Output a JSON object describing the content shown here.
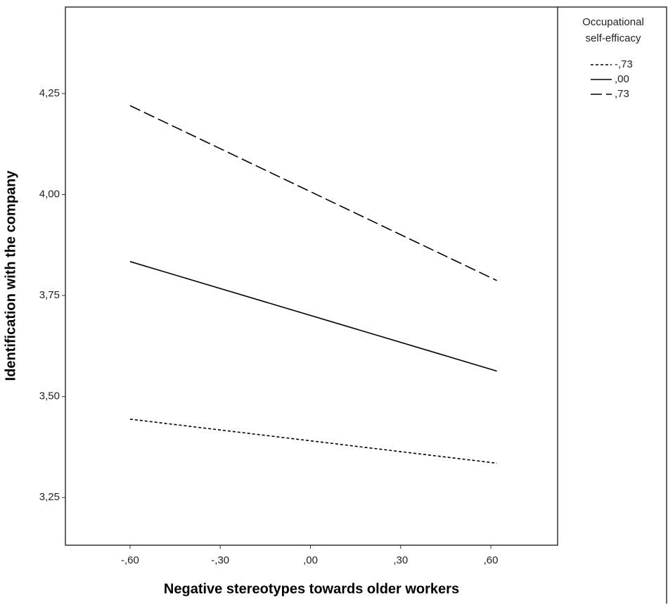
{
  "chart_data": {
    "type": "line",
    "x_label": "Negative stereotypes towards older workers",
    "y_label": "Identification with the company",
    "legend_title": [
      "Occupational",
      "self-efficacy"
    ],
    "legend_position": "right",
    "x": [
      -0.6,
      0.62
    ],
    "series": [
      {
        "name": "-,73",
        "color": "#000000",
        "dash": "dotted",
        "values": [
          3.444,
          3.335
        ]
      },
      {
        "name": ",00",
        "color": "#000000",
        "dash": "solid",
        "values": [
          3.834,
          3.563
        ]
      },
      {
        "name": ",73",
        "color": "#000000",
        "dash": "dashed",
        "values": [
          4.22,
          3.787
        ]
      }
    ],
    "xlim": [
      -0.815,
      0.822
    ],
    "xticks": [
      {
        "value": -0.6,
        "label": "-,60"
      },
      {
        "value": -0.3,
        "label": "-,30"
      },
      {
        "value": 0,
        "label": ",00"
      },
      {
        "value": 0.3,
        "label": ",30"
      },
      {
        "value": 0.6,
        "label": ",60"
      }
    ],
    "ylim": [
      3.132,
      4.464
    ],
    "yticks": [
      {
        "value": 3.25,
        "label": "3,25"
      },
      {
        "value": 3.5,
        "label": "3,50"
      },
      {
        "value": 3.75,
        "label": "3,75"
      },
      {
        "value": 4.0,
        "label": "4,00"
      },
      {
        "value": 4.25,
        "label": "4,25"
      }
    ],
    "grid": false
  }
}
